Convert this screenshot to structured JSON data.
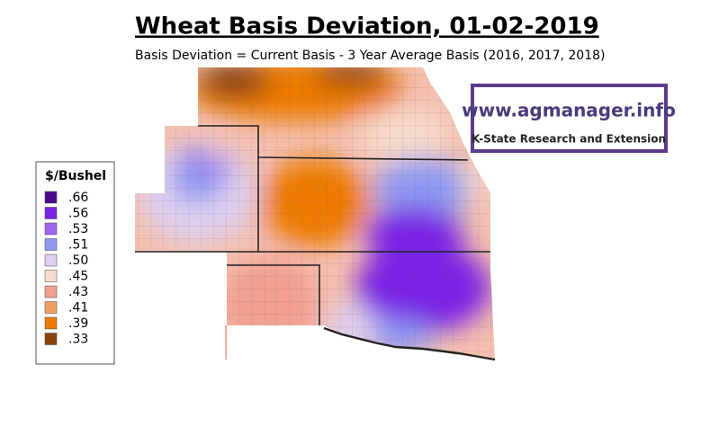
{
  "title": "Wheat Basis Deviation, 01-02-2019",
  "subtitle": "Basis Deviation = Current Basis - 3 Year Average Basis (2016, 2017, 2018)",
  "legend": {
    "title": "$/Bushel",
    "items": [
      {
        "label": ".66",
        "color": "#4a0a8c"
      },
      {
        "label": ".56",
        "color": "#7a22e6"
      },
      {
        "label": ".53",
        "color": "#a066ee"
      },
      {
        "label": ".51",
        "color": "#8e9af2"
      },
      {
        "label": ".50",
        "color": "#ddd0f0"
      },
      {
        "label": ".45",
        "color": "#f8dccc"
      },
      {
        "label": ".43",
        "color": "#f2a090"
      },
      {
        "label": ".41",
        "color": "#f2a060"
      },
      {
        "label": ".39",
        "color": "#ee7a00"
      },
      {
        "label": ".33",
        "color": "#8a4208"
      }
    ]
  },
  "logo": {
    "url": "www.agmanager.info",
    "tagline": "K-State Research and Extension"
  }
}
